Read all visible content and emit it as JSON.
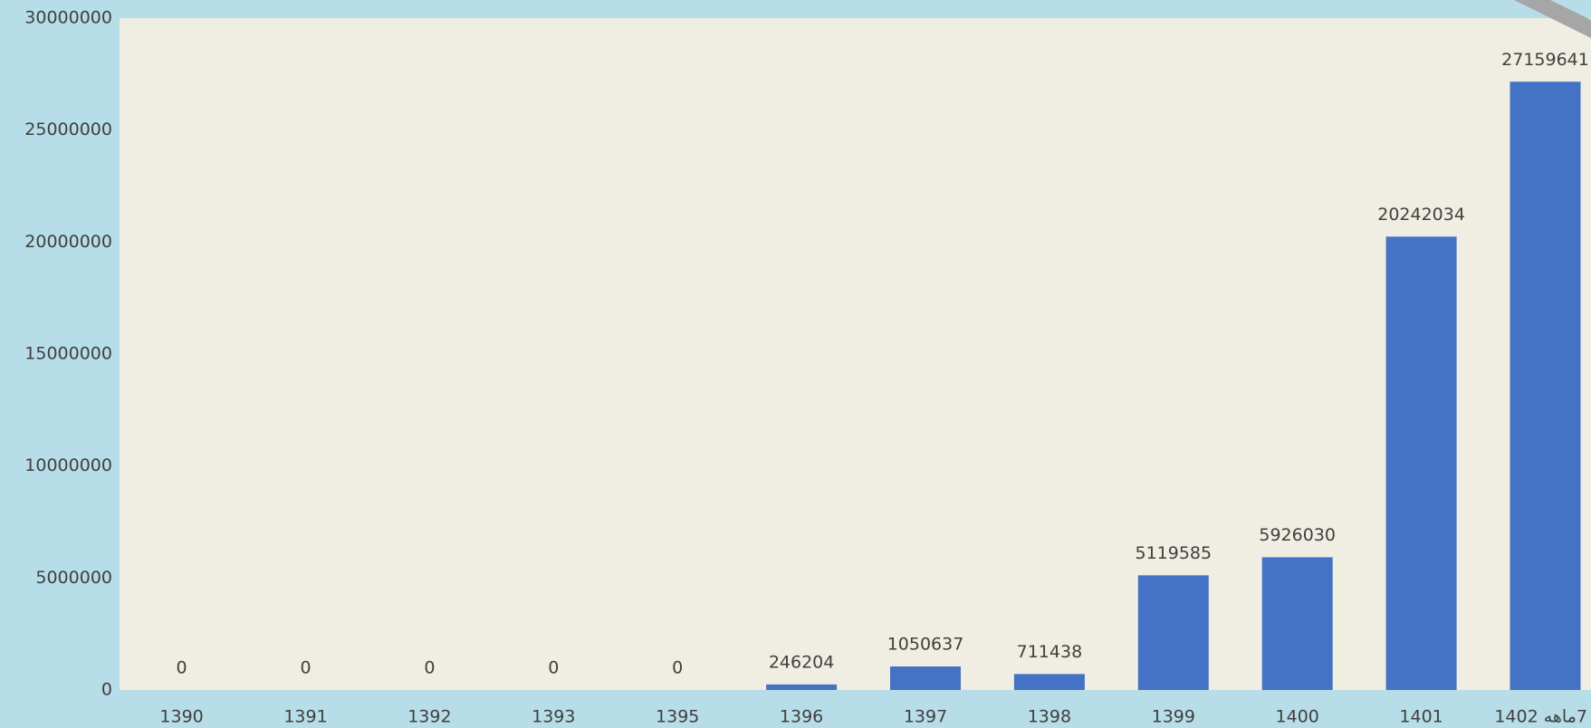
{
  "chart_data": {
    "type": "bar",
    "categories": [
      "1390",
      "1391",
      "1392",
      "1393",
      "1395",
      "1396",
      "1397",
      "1398",
      "1399",
      "1400",
      "1401",
      "7ماهه 1402"
    ],
    "values": [
      0,
      0,
      0,
      0,
      0,
      246204,
      1050637,
      711438,
      5119585,
      5926030,
      20242034,
      27159641
    ],
    "color": "#4472c4",
    "ylim": [
      0,
      30000000
    ],
    "yticks": [
      0,
      5000000,
      10000000,
      15000000,
      20000000,
      25000000,
      30000000
    ],
    "grid": false
  }
}
